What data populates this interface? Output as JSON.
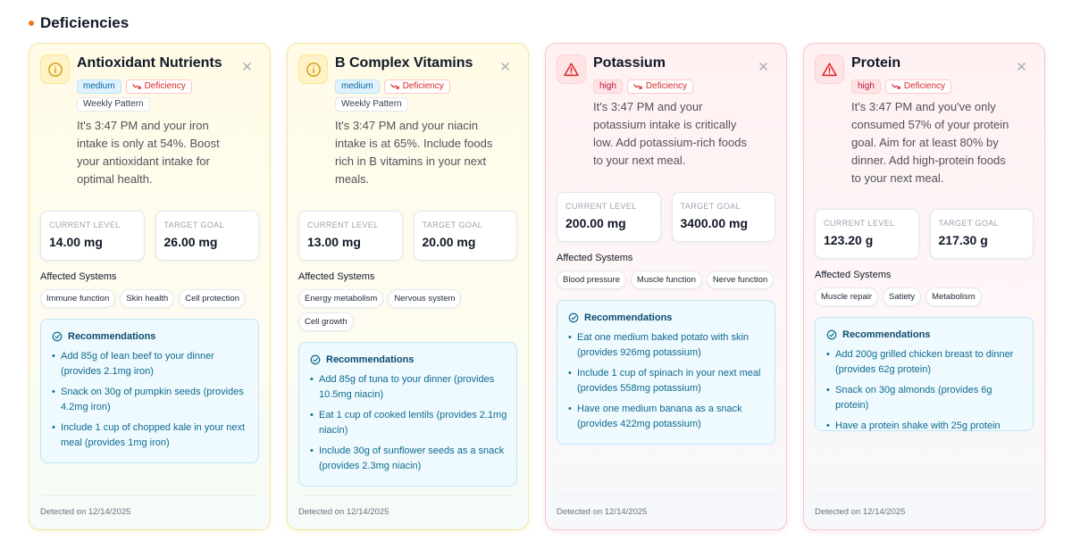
{
  "section": {
    "title": "Deficiencies",
    "dot_color": "#f97316"
  },
  "cards": [
    {
      "title": "Antioxidant Nutrients",
      "icon": "info-circle-icon",
      "severity": "medium",
      "type_label": "Deficiency",
      "pattern": "Weekly Pattern",
      "message": "It's 3:47 PM and your iron intake is only at 54%. Boost your antioxidant intake for optimal health.",
      "current_label": "CURRENT LEVEL",
      "current_value": "14.00 mg",
      "target_label": "TARGET GOAL",
      "target_value": "26.00 mg",
      "affected_label": "Affected Systems",
      "systems": [
        "Immune function",
        "Skin health",
        "Cell protection"
      ],
      "recs_title": "Recommendations",
      "recs": [
        "Add 85g of lean beef to your dinner (provides 2.1mg iron)",
        "Snack on 30g of pumpkin seeds (provides 4.2mg iron)",
        "Include 1 cup of chopped kale in your next meal (provides 1mg iron)"
      ],
      "detected": "Detected on 12/14/2025"
    },
    {
      "title": "B Complex Vitamins",
      "icon": "info-circle-icon",
      "severity": "medium",
      "type_label": "Deficiency",
      "pattern": "Weekly Pattern",
      "message": "It's 3:47 PM and your niacin intake is at 65%. Include foods rich in B vitamins in your next meals.",
      "current_label": "CURRENT LEVEL",
      "current_value": "13.00 mg",
      "target_label": "TARGET GOAL",
      "target_value": "20.00 mg",
      "affected_label": "Affected Systems",
      "systems": [
        "Energy metabolism",
        "Nervous system",
        "Cell growth"
      ],
      "recs_title": "Recommendations",
      "recs": [
        "Add 85g of tuna to your dinner (provides 10.5mg niacin)",
        "Eat 1 cup of cooked lentils (provides 2.1mg niacin)",
        "Include 30g of sunflower seeds as a snack (provides 2.3mg niacin)"
      ],
      "detected": "Detected on 12/14/2025"
    },
    {
      "title": "Potassium",
      "icon": "warning-triangle-icon",
      "severity": "high",
      "type_label": "Deficiency",
      "pattern": "",
      "message": "It's 3:47 PM and your potassium intake is critically low. Add potassium-rich foods to your next meal.",
      "current_label": "CURRENT LEVEL",
      "current_value": "200.00 mg",
      "target_label": "TARGET GOAL",
      "target_value": "3400.00 mg",
      "affected_label": "Affected Systems",
      "systems": [
        "Blood pressure",
        "Muscle function",
        "Nerve function"
      ],
      "recs_title": "Recommendations",
      "recs": [
        "Eat one medium baked potato with skin (provides 926mg potassium)",
        "Include 1 cup of spinach in your next meal (provides 558mg potassium)",
        "Have one medium banana as a snack (provides 422mg potassium)"
      ],
      "detected": "Detected on 12/14/2025"
    },
    {
      "title": "Protein",
      "icon": "warning-triangle-icon",
      "severity": "high",
      "type_label": "Deficiency",
      "pattern": "",
      "message": "It's 3:47 PM and you've only consumed 57% of your protein goal. Aim for at least 80% by dinner. Add high-protein foods to your next meal.",
      "current_label": "CURRENT LEVEL",
      "current_value": "123.20 g",
      "target_label": "TARGET GOAL",
      "target_value": "217.30 g",
      "affected_label": "Affected Systems",
      "systems": [
        "Muscle repair",
        "Satiety",
        "Metabolism"
      ],
      "recs_title": "Recommendations",
      "recs": [
        "Add 200g grilled chicken breast to dinner (provides 62g protein)",
        "Snack on 30g almonds (provides 6g protein)",
        "Have a protein shake with 25g protein"
      ],
      "detected": "Detected on 12/14/2025"
    }
  ]
}
